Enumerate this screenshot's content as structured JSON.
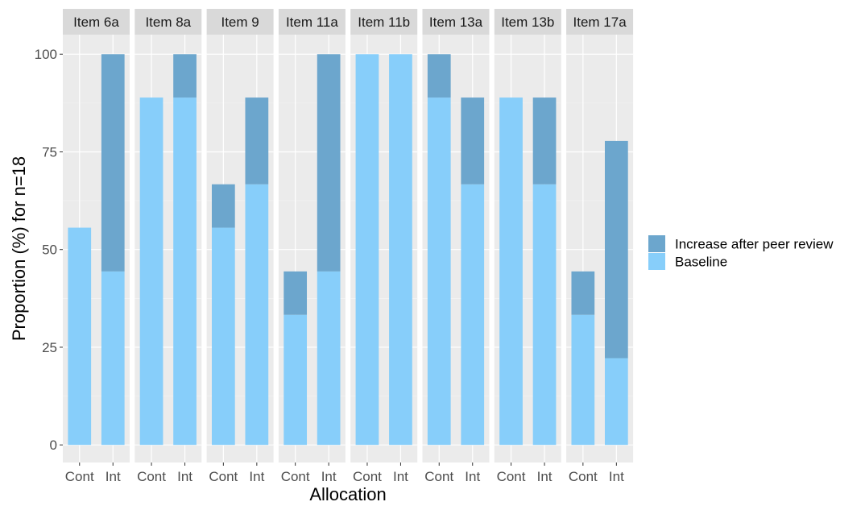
{
  "chart_data": {
    "type": "bar",
    "stacked": true,
    "facets": [
      "Item 6a",
      "Item 8a",
      "Item 9",
      "Item 11a",
      "Item 11b",
      "Item 13a",
      "Item 13b",
      "Item 17a"
    ],
    "categories": [
      "Cont",
      "Int"
    ],
    "series": [
      {
        "name": "Baseline",
        "color": "#87CEFA",
        "values": [
          [
            55.6,
            44.4
          ],
          [
            88.9,
            88.9
          ],
          [
            55.6,
            66.7
          ],
          [
            33.3,
            44.4
          ],
          [
            100,
            100
          ],
          [
            88.9,
            66.7
          ],
          [
            88.9,
            66.7
          ],
          [
            33.3,
            22.2
          ]
        ]
      },
      {
        "name": "Increase after peer review",
        "color": "#6CA6CD",
        "values": [
          [
            0,
            55.6
          ],
          [
            0,
            11.1
          ],
          [
            11.1,
            22.2
          ],
          [
            11.1,
            55.6
          ],
          [
            0,
            0
          ],
          [
            11.1,
            22.2
          ],
          [
            0,
            22.2
          ],
          [
            11.1,
            55.6
          ]
        ]
      }
    ],
    "xlabel": "Allocation",
    "ylabel": "Proportion (%) for n=18",
    "ylim": [
      -4.5,
      105
    ],
    "yticks": [
      0,
      25,
      50,
      75,
      100
    ],
    "legend_entries": [
      "Increase after peer review",
      "Baseline"
    ],
    "legend_position": "right",
    "grid": true,
    "panel_background": "#EBEBEB",
    "strip_background": "#D9D9D9"
  }
}
